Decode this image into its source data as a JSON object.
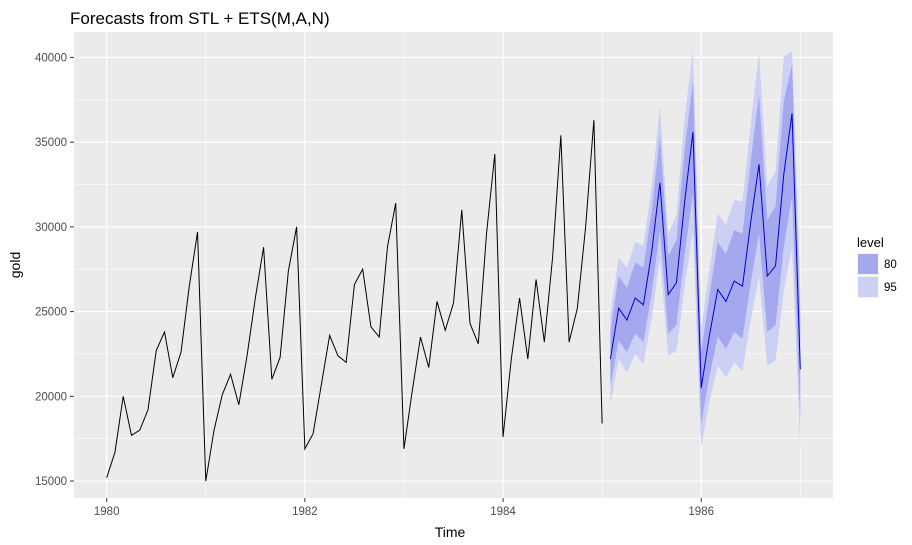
{
  "chart_data": {
    "type": "line",
    "title": "Forecasts from STL +  ETS(M,A,N)",
    "xlabel": "Time",
    "ylabel": "gold",
    "xlim": [
      1979.67,
      1987.33
    ],
    "ylim": [
      14000,
      41500
    ],
    "x_ticks": [
      1980,
      1982,
      1984,
      1986
    ],
    "x_tick_labels": [
      "1980",
      "1982",
      "1984",
      "1986"
    ],
    "y_ticks": [
      15000,
      20000,
      25000,
      30000,
      35000,
      40000
    ],
    "y_tick_labels": [
      "15000",
      "20000",
      "25000",
      "30000",
      "35000",
      "40000"
    ],
    "grid": true,
    "legend": {
      "title": "level",
      "placement": "right",
      "entries": [
        {
          "label": "80",
          "color": "#a5a8ee"
        },
        {
          "label": "95",
          "color": "#ccd0f5"
        }
      ]
    },
    "colors": {
      "panel": "#ebebeb",
      "grid_major": "#ffffff",
      "history_line": "#000000",
      "forecast_line": "#0000cc",
      "band80": "#a5a8ee",
      "band95": "#ccd0f5"
    },
    "history": {
      "start": 1980,
      "frequency": 12,
      "values": [
        15200,
        16700,
        20000,
        17700,
        18000,
        19200,
        22700,
        23800,
        21100,
        22600,
        26500,
        29700,
        15000,
        18000,
        20100,
        21300,
        19500,
        22400,
        25800,
        28800,
        21000,
        22300,
        27400,
        30000,
        16900,
        17800,
        20700,
        23600,
        22400,
        22000,
        26600,
        27500,
        24100,
        23500,
        28800,
        31400,
        16900,
        20300,
        23500,
        21700,
        25600,
        23900,
        25500,
        31000,
        24300,
        23100,
        29600,
        34300,
        17600,
        22200,
        25800,
        22200,
        26900,
        23200,
        28200,
        35400,
        23200,
        25200,
        30000,
        36300,
        18400
      ]
    },
    "forecast": {
      "start": 1985.0833,
      "frequency": 12,
      "mean": [
        22200,
        25200,
        24500,
        25800,
        25400,
        28500,
        32600,
        26000,
        26700,
        31500,
        35600,
        20500,
        23600,
        26300,
        25600,
        26800,
        26500,
        30300,
        33700,
        27100,
        27700,
        33100,
        36700,
        21600
      ],
      "lo80": [
        20600,
        23300,
        22600,
        23700,
        23200,
        26100,
        29800,
        23700,
        24200,
        28400,
        32000,
        18400,
        21200,
        23500,
        22800,
        23800,
        23400,
        26700,
        29600,
        23800,
        24200,
        28800,
        31800,
        18700
      ],
      "hi80": [
        23800,
        27100,
        26400,
        27900,
        27600,
        30900,
        35400,
        28300,
        29200,
        34600,
        38600,
        22600,
        26000,
        29100,
        28400,
        29800,
        29600,
        33900,
        37800,
        30400,
        31200,
        37400,
        39600,
        24500
      ],
      "lo95": [
        19500,
        22200,
        21400,
        22500,
        21900,
        24600,
        28100,
        22400,
        22700,
        26500,
        29700,
        17000,
        19700,
        21800,
        21100,
        22000,
        21500,
        24500,
        27100,
        21800,
        22100,
        26200,
        28800,
        16900
      ],
      "hi95": [
        24900,
        28200,
        27600,
        29100,
        28900,
        32400,
        37100,
        29600,
        30700,
        36500,
        40400,
        24000,
        27500,
        30800,
        30100,
        31600,
        31500,
        36100,
        40300,
        32400,
        33300,
        40000,
        40400,
        26300
      ]
    }
  }
}
